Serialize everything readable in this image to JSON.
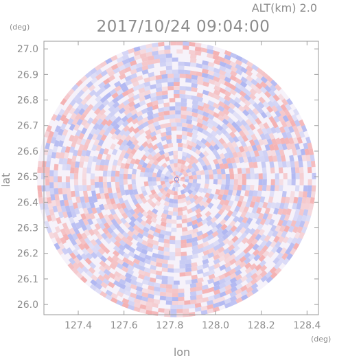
{
  "header": {
    "altitude_label": "ALT(km) 2.0",
    "timestamp": "2017/10/24 09:04:00",
    "lat_unit": "(deg)",
    "lon_unit": "(deg)"
  },
  "chart_data": {
    "type": "heatmap",
    "title": "2017/10/24 09:04:00",
    "subtitle": "ALT(km) 2.0",
    "xlabel": "lon",
    "ylabel": "lat",
    "x_unit": "(deg)",
    "y_unit": "(deg)",
    "xlim": [
      127.25,
      128.45
    ],
    "ylim": [
      25.96,
      27.03
    ],
    "x_ticks": [
      127.4,
      127.6,
      127.8,
      128.0,
      128.2,
      128.4
    ],
    "x_tick_labels": [
      "127.4",
      "127.6",
      "127.8",
      "128.0",
      "128.2",
      "128.4"
    ],
    "y_ticks": [
      26.0,
      26.1,
      26.2,
      26.3,
      26.4,
      26.5,
      26.6,
      26.7,
      26.8,
      26.9,
      27.0
    ],
    "y_tick_labels": [
      "26.0",
      "26.1",
      "26.2",
      "26.3",
      "26.4",
      "26.5",
      "26.6",
      "26.7",
      "26.8",
      "26.9",
      "27.0"
    ],
    "radar_center": {
      "lon": 127.83,
      "lat": 26.49
    },
    "radar_range_deg": {
      "lon": 0.61,
      "lat": 0.54
    },
    "colors": {
      "positive": "#f4a8a8",
      "negative": "#a8b0f0",
      "neutral": "#ffffff"
    },
    "grid": false,
    "legend": "none"
  }
}
